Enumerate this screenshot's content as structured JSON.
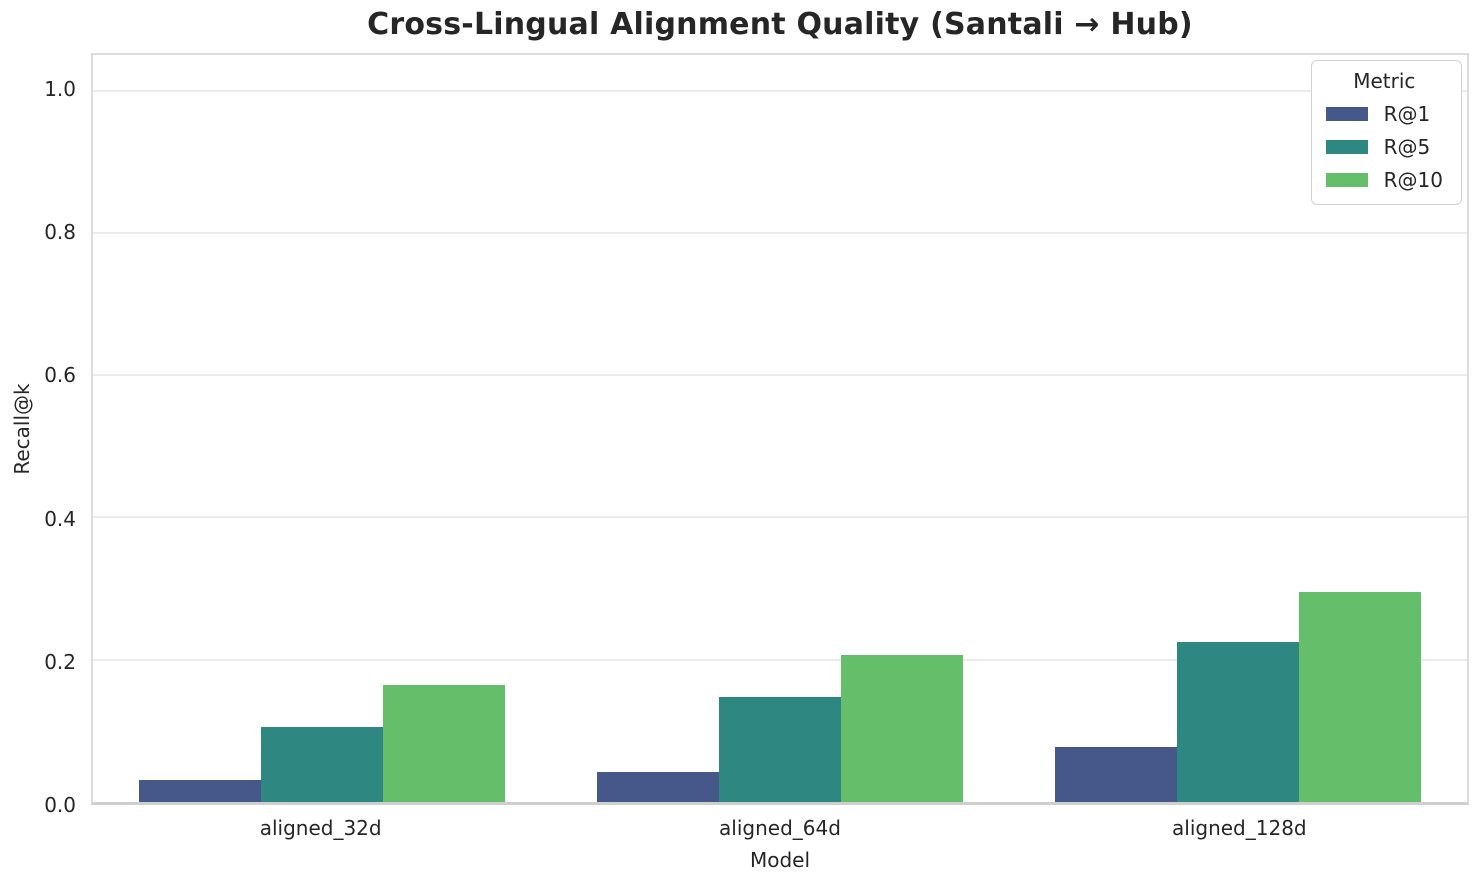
{
  "chart_data": {
    "type": "bar",
    "title": "Cross-Lingual Alignment Quality (Santali → Hub)",
    "xlabel": "Model",
    "ylabel": "Recall@k",
    "categories": [
      "aligned_32d",
      "aligned_64d",
      "aligned_128d"
    ],
    "series": [
      {
        "name": "R@1",
        "color": "#46588a",
        "values": [
          0.031,
          0.042,
          0.078
        ]
      },
      {
        "name": "R@5",
        "color": "#2e8780",
        "values": [
          0.105,
          0.147,
          0.225
        ]
      },
      {
        "name": "R@10",
        "color": "#65bf6a",
        "values": [
          0.165,
          0.206,
          0.295
        ]
      }
    ],
    "ylim": [
      0,
      1.05
    ],
    "yticks": [
      "0.0",
      "0.2",
      "0.4",
      "0.6",
      "0.8",
      "1.0"
    ],
    "legend": {
      "title": "Metric",
      "position": "upper right"
    },
    "grid": "horizontal",
    "background": "#ffffff"
  }
}
